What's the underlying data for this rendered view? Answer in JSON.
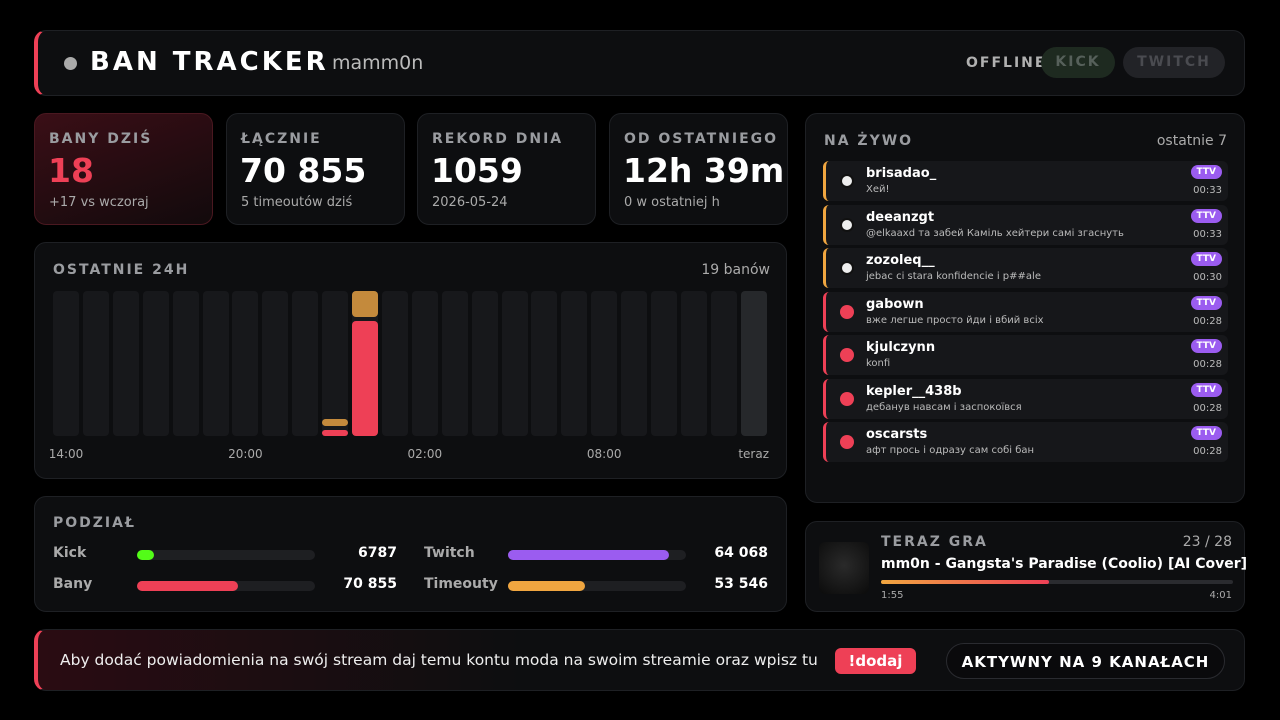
{
  "header": {
    "title": "BAN TRACKER",
    "user": "mamm0n",
    "status": "OFFLINE",
    "buttons": [
      "KICK",
      "TWITCH"
    ]
  },
  "stats": [
    {
      "label": "BANY DZIŚ",
      "value": "18",
      "sub": "+17 vs wczoraj"
    },
    {
      "label": "ŁĄCZNIE",
      "value": "70 855",
      "sub": "5 timeoutów dziś"
    },
    {
      "label": "REKORD DNIA",
      "value": "1059",
      "sub": "2026-05-24"
    },
    {
      "label": "OD OSTATNIEGO",
      "value": "12h 39m",
      "sub": "0 w ostatniej h"
    }
  ],
  "chart_data": {
    "type": "bar",
    "stacked": true,
    "title": "OSTATNIE 24H",
    "summary": "19 banów",
    "categories": [
      "14:00",
      null,
      null,
      null,
      null,
      null,
      "20:00",
      null,
      null,
      null,
      null,
      null,
      "02:00",
      null,
      null,
      null,
      null,
      null,
      "08:00",
      null,
      null,
      null,
      null,
      "teraz"
    ],
    "series": [
      {
        "color": "#ee4056",
        "values": [
          0,
          0,
          0,
          0,
          0,
          0,
          0,
          0,
          0,
          1,
          18,
          0,
          0,
          0,
          0,
          0,
          0,
          0,
          0,
          0,
          0,
          0,
          0,
          0
        ]
      },
      {
        "color": "#c48a3c",
        "values": [
          0,
          0,
          0,
          0,
          0,
          0,
          0,
          0,
          0,
          1,
          4,
          0,
          0,
          0,
          0,
          0,
          0,
          0,
          0,
          0,
          0,
          0,
          0,
          0
        ]
      }
    ]
  },
  "split": {
    "title": "PODZIAŁ",
    "pairs": [
      [
        {
          "label": "Kick",
          "value": 6787,
          "value_label": "6787",
          "color": "#53fc18"
        },
        {
          "label": "Twitch",
          "value": 64068,
          "value_label": "64 068",
          "color": "#9b5cf0"
        }
      ],
      [
        {
          "label": "Bany",
          "value": 70855,
          "value_label": "70 855",
          "color": "#ee4056"
        },
        {
          "label": "Timeouty",
          "value": 53546,
          "value_label": "53 546",
          "color": "#f0a640"
        }
      ]
    ]
  },
  "live": {
    "title": "NA ŻYWO",
    "subtitle": "ostatnie 7",
    "items": [
      {
        "kind": "timeout",
        "user": "brisadao_",
        "message": "Хей!",
        "badge": "TTV",
        "time": "00:33"
      },
      {
        "kind": "timeout",
        "user": "deeanzgt",
        "message": "@elkaaxd та забей Каміль хейтери самі згаснуть",
        "badge": "TTV",
        "time": "00:33"
      },
      {
        "kind": "timeout",
        "user": "zozoleq__",
        "message": "jebac ci stara konfidencie i p##ale",
        "badge": "TTV",
        "time": "00:30"
      },
      {
        "kind": "ban",
        "user": "gabown",
        "message": "вже легше просто йди і вбий всіх",
        "badge": "TTV",
        "time": "00:28"
      },
      {
        "kind": "ban",
        "user": "kjulczynn",
        "message": "konfi",
        "badge": "TTV",
        "time": "00:28"
      },
      {
        "kind": "ban",
        "user": "kepler__438b",
        "message": "дебанув навсам і заспокоївся",
        "badge": "TTV",
        "time": "00:28"
      },
      {
        "kind": "ban",
        "user": "oscarsts",
        "message": "афт прось і одразу сам собі бан",
        "badge": "TTV",
        "time": "00:28"
      }
    ]
  },
  "now_playing": {
    "title": "TERAZ GRA",
    "position": "23 / 28",
    "song": "mm0n - Gangsta's Paradise (Coolio) [AI Cover]",
    "elapsed": "1:55",
    "duration": "4:01"
  },
  "footer": {
    "text": "Aby dodać powiadomienia na swój stream daj temu kontu moda na swoim streamie oraz wpisz tu",
    "command": "!dodaj",
    "channels": "AKTYWNY NA 9 KANAŁACH"
  }
}
